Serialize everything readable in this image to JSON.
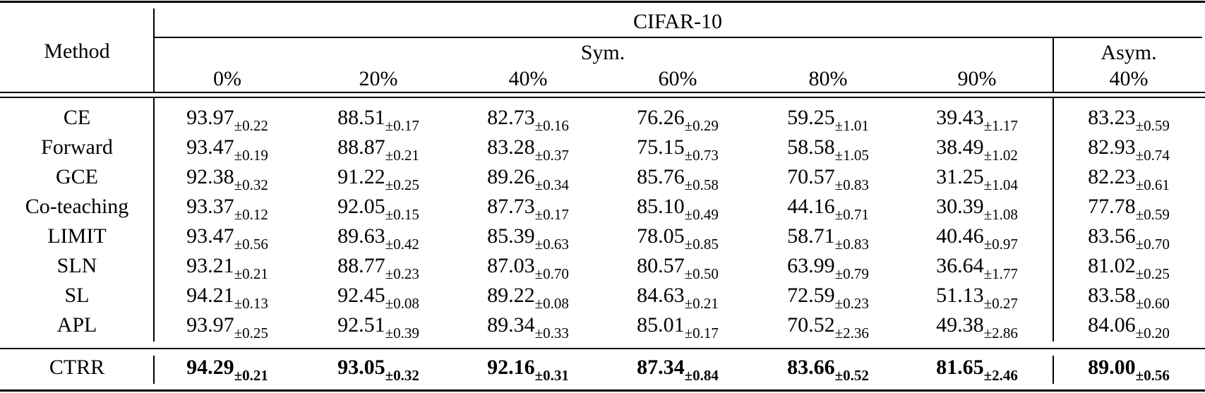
{
  "table": {
    "method_header": "Method",
    "dataset_header": "CIFAR-10",
    "groups": {
      "sym": "Sym.",
      "asym": "Asym."
    },
    "columns": [
      "0%",
      "20%",
      "40%",
      "60%",
      "80%",
      "90%",
      "40%"
    ],
    "rows": [
      {
        "method": "CE",
        "values": [
          [
            "93.97",
            "±0.22"
          ],
          [
            "88.51",
            "±0.17"
          ],
          [
            "82.73",
            "±0.16"
          ],
          [
            "76.26",
            "±0.29"
          ],
          [
            "59.25",
            "±1.01"
          ],
          [
            "39.43",
            "±1.17"
          ],
          [
            "83.23",
            "±0.59"
          ]
        ]
      },
      {
        "method": "Forward",
        "values": [
          [
            "93.47",
            "±0.19"
          ],
          [
            "88.87",
            "±0.21"
          ],
          [
            "83.28",
            "±0.37"
          ],
          [
            "75.15",
            "±0.73"
          ],
          [
            "58.58",
            "±1.05"
          ],
          [
            "38.49",
            "±1.02"
          ],
          [
            "82.93",
            "±0.74"
          ]
        ]
      },
      {
        "method": "GCE",
        "values": [
          [
            "92.38",
            "±0.32"
          ],
          [
            "91.22",
            "±0.25"
          ],
          [
            "89.26",
            "±0.34"
          ],
          [
            "85.76",
            "±0.58"
          ],
          [
            "70.57",
            "±0.83"
          ],
          [
            "31.25",
            "±1.04"
          ],
          [
            "82.23",
            "±0.61"
          ]
        ]
      },
      {
        "method": "Co-teaching",
        "values": [
          [
            "93.37",
            "±0.12"
          ],
          [
            "92.05",
            "±0.15"
          ],
          [
            "87.73",
            "±0.17"
          ],
          [
            "85.10",
            "±0.49"
          ],
          [
            "44.16",
            "±0.71"
          ],
          [
            "30.39",
            "±1.08"
          ],
          [
            "77.78",
            "±0.59"
          ]
        ]
      },
      {
        "method": "LIMIT",
        "values": [
          [
            "93.47",
            "±0.56"
          ],
          [
            "89.63",
            "±0.42"
          ],
          [
            "85.39",
            "±0.63"
          ],
          [
            "78.05",
            "±0.85"
          ],
          [
            "58.71",
            "±0.83"
          ],
          [
            "40.46",
            "±0.97"
          ],
          [
            "83.56",
            "±0.70"
          ]
        ]
      },
      {
        "method": "SLN",
        "values": [
          [
            "93.21",
            "±0.21"
          ],
          [
            "88.77",
            "±0.23"
          ],
          [
            "87.03",
            "±0.70"
          ],
          [
            "80.57",
            "±0.50"
          ],
          [
            "63.99",
            "±0.79"
          ],
          [
            "36.64",
            "±1.77"
          ],
          [
            "81.02",
            "±0.25"
          ]
        ]
      },
      {
        "method": "SL",
        "values": [
          [
            "94.21",
            "±0.13"
          ],
          [
            "92.45",
            "±0.08"
          ],
          [
            "89.22",
            "±0.08"
          ],
          [
            "84.63",
            "±0.21"
          ],
          [
            "72.59",
            "±0.23"
          ],
          [
            "51.13",
            "±0.27"
          ],
          [
            "83.58",
            "±0.60"
          ]
        ]
      },
      {
        "method": "APL",
        "values": [
          [
            "93.97",
            "±0.25"
          ],
          [
            "92.51",
            "±0.39"
          ],
          [
            "89.34",
            "±0.33"
          ],
          [
            "85.01",
            "±0.17"
          ],
          [
            "70.52",
            "±2.36"
          ],
          [
            "49.38",
            "±2.86"
          ],
          [
            "84.06",
            "±0.20"
          ]
        ]
      }
    ],
    "final_row": {
      "method": "CTRR",
      "values": [
        [
          "94.29",
          "±0.21"
        ],
        [
          "93.05",
          "±0.32"
        ],
        [
          "92.16",
          "±0.31"
        ],
        [
          "87.34",
          "±0.84"
        ],
        [
          "83.66",
          "±0.52"
        ],
        [
          "81.65",
          "±2.46"
        ],
        [
          "89.00",
          "±0.56"
        ]
      ]
    }
  }
}
